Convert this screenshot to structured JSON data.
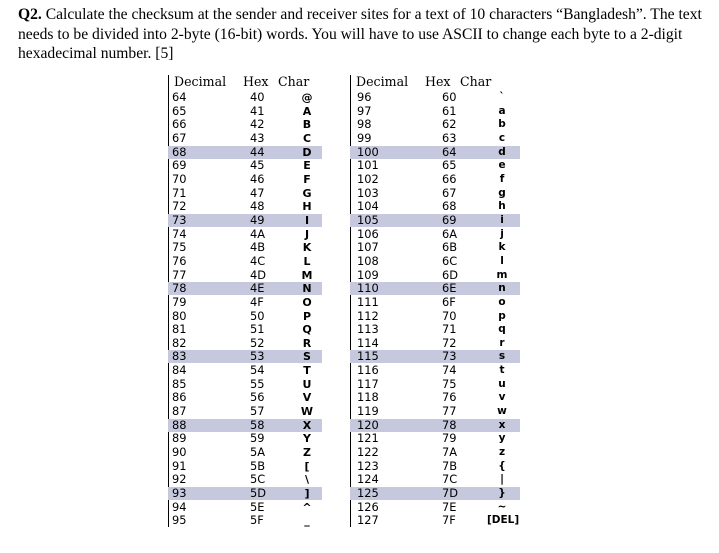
{
  "question": {
    "number": "Q2.",
    "text": " Calculate the checksum at the sender and receiver sites for a text of 10 characters “Bangladesh”. The text needs to be divided into 2-byte (16-bit) words. You will have to use ASCII to change each byte to a 2-digit hexadecimal number. [5]"
  },
  "headers": [
    "Decimal",
    "Hex",
    "Char"
  ],
  "left_table": [
    {
      "dec": "64",
      "hex": "40",
      "chr": "@"
    },
    {
      "dec": "65",
      "hex": "41",
      "chr": "A"
    },
    {
      "dec": "66",
      "hex": "42",
      "chr": "B"
    },
    {
      "dec": "67",
      "hex": "43",
      "chr": "C"
    },
    {
      "dec": "68",
      "hex": "44",
      "chr": "D"
    },
    {
      "dec": "69",
      "hex": "45",
      "chr": "E"
    },
    {
      "dec": "70",
      "hex": "46",
      "chr": "F"
    },
    {
      "dec": "71",
      "hex": "47",
      "chr": "G"
    },
    {
      "dec": "72",
      "hex": "48",
      "chr": "H"
    },
    {
      "dec": "73",
      "hex": "49",
      "chr": "I"
    },
    {
      "dec": "74",
      "hex": "4A",
      "chr": "J"
    },
    {
      "dec": "75",
      "hex": "4B",
      "chr": "K"
    },
    {
      "dec": "76",
      "hex": "4C",
      "chr": "L"
    },
    {
      "dec": "77",
      "hex": "4D",
      "chr": "M"
    },
    {
      "dec": "78",
      "hex": "4E",
      "chr": "N"
    },
    {
      "dec": "79",
      "hex": "4F",
      "chr": "O"
    },
    {
      "dec": "80",
      "hex": "50",
      "chr": "P"
    },
    {
      "dec": "81",
      "hex": "51",
      "chr": "Q"
    },
    {
      "dec": "82",
      "hex": "52",
      "chr": "R"
    },
    {
      "dec": "83",
      "hex": "53",
      "chr": "S"
    },
    {
      "dec": "84",
      "hex": "54",
      "chr": "T"
    },
    {
      "dec": "85",
      "hex": "55",
      "chr": "U"
    },
    {
      "dec": "86",
      "hex": "56",
      "chr": "V"
    },
    {
      "dec": "87",
      "hex": "57",
      "chr": "W"
    },
    {
      "dec": "88",
      "hex": "58",
      "chr": "X"
    },
    {
      "dec": "89",
      "hex": "59",
      "chr": "Y"
    },
    {
      "dec": "90",
      "hex": "5A",
      "chr": "Z"
    },
    {
      "dec": "91",
      "hex": "5B",
      "chr": "["
    },
    {
      "dec": "92",
      "hex": "5C",
      "chr": "\\"
    },
    {
      "dec": "93",
      "hex": "5D",
      "chr": "]"
    },
    {
      "dec": "94",
      "hex": "5E",
      "chr": "^"
    },
    {
      "dec": "95",
      "hex": "5F",
      "chr": "_"
    }
  ],
  "right_table": [
    {
      "dec": "96",
      "hex": "60",
      "chr": "`"
    },
    {
      "dec": "97",
      "hex": "61",
      "chr": "a"
    },
    {
      "dec": "98",
      "hex": "62",
      "chr": "b"
    },
    {
      "dec": "99",
      "hex": "63",
      "chr": "c"
    },
    {
      "dec": "100",
      "hex": "64",
      "chr": "d"
    },
    {
      "dec": "101",
      "hex": "65",
      "chr": "e"
    },
    {
      "dec": "102",
      "hex": "66",
      "chr": "f"
    },
    {
      "dec": "103",
      "hex": "67",
      "chr": "g"
    },
    {
      "dec": "104",
      "hex": "68",
      "chr": "h"
    },
    {
      "dec": "105",
      "hex": "69",
      "chr": "i"
    },
    {
      "dec": "106",
      "hex": "6A",
      "chr": "j"
    },
    {
      "dec": "107",
      "hex": "6B",
      "chr": "k"
    },
    {
      "dec": "108",
      "hex": "6C",
      "chr": "l"
    },
    {
      "dec": "109",
      "hex": "6D",
      "chr": "m"
    },
    {
      "dec": "110",
      "hex": "6E",
      "chr": "n"
    },
    {
      "dec": "111",
      "hex": "6F",
      "chr": "o"
    },
    {
      "dec": "112",
      "hex": "70",
      "chr": "p"
    },
    {
      "dec": "113",
      "hex": "71",
      "chr": "q"
    },
    {
      "dec": "114",
      "hex": "72",
      "chr": "r"
    },
    {
      "dec": "115",
      "hex": "73",
      "chr": "s"
    },
    {
      "dec": "116",
      "hex": "74",
      "chr": "t"
    },
    {
      "dec": "117",
      "hex": "75",
      "chr": "u"
    },
    {
      "dec": "118",
      "hex": "76",
      "chr": "v"
    },
    {
      "dec": "119",
      "hex": "77",
      "chr": "w"
    },
    {
      "dec": "120",
      "hex": "78",
      "chr": "x"
    },
    {
      "dec": "121",
      "hex": "79",
      "chr": "y"
    },
    {
      "dec": "122",
      "hex": "7A",
      "chr": "z"
    },
    {
      "dec": "123",
      "hex": "7B",
      "chr": "{"
    },
    {
      "dec": "124",
      "hex": "7C",
      "chr": "|"
    },
    {
      "dec": "125",
      "hex": "7D",
      "chr": "}"
    },
    {
      "dec": "126",
      "hex": "7E",
      "chr": "~"
    },
    {
      "dec": "127",
      "hex": "7F",
      "chr": "[DEL]"
    }
  ],
  "shaded_rows": [
    4,
    9,
    14,
    19,
    24,
    29
  ],
  "colors": {
    "row_shade": "#c6c9dd",
    "text": "#000000",
    "background": "#ffffff"
  }
}
